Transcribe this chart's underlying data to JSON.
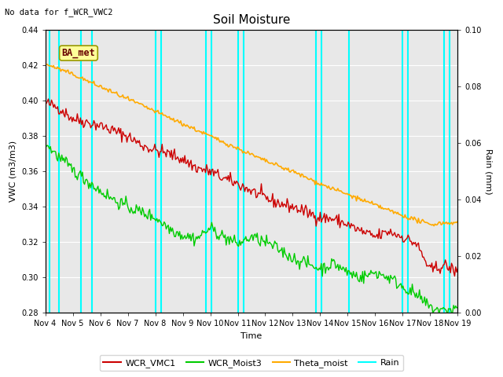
{
  "title": "Soil Moisture",
  "no_data_text": "No data for f_WCR_VWC2",
  "ba_met_label": "BA_met",
  "ylabel_left": "VWC (m3/m3)",
  "ylabel_right": "Rain (mm)",
  "xlabel": "Time",
  "ylim_left": [
    0.28,
    0.44
  ],
  "ylim_right": [
    0.0,
    0.1
  ],
  "yticks_left": [
    0.28,
    0.3,
    0.32,
    0.34,
    0.36,
    0.38,
    0.4,
    0.42,
    0.44
  ],
  "yticks_right": [
    0.0,
    0.02,
    0.04,
    0.06,
    0.08,
    0.1
  ],
  "xtick_labels": [
    "Nov 4",
    "Nov 5",
    "Nov 6",
    "Nov 7",
    "Nov 8",
    "Nov 9",
    "Nov 10",
    "Nov 11",
    "Nov 12",
    "Nov 13",
    "Nov 14",
    "Nov 15",
    "Nov 16",
    "Nov 17",
    "Nov 18",
    "Nov 19"
  ],
  "xtick_positions": [
    0,
    1,
    2,
    3,
    4,
    5,
    6,
    7,
    8,
    9,
    10,
    11,
    12,
    13,
    14,
    15
  ],
  "xlim": [
    0,
    15
  ],
  "rain_lines_x": [
    0.15,
    0.5,
    1.3,
    1.7,
    4.0,
    4.2,
    5.85,
    6.05,
    7.0,
    7.2,
    9.85,
    10.05,
    11.05,
    13.0,
    13.2,
    14.5,
    14.7
  ],
  "red_line_color": "#cc0000",
  "green_line_color": "#00cc00",
  "orange_line_color": "#ffaa00",
  "cyan_line_color": "#00ffff",
  "background_color": "#e8e8e8",
  "legend_entries": [
    "WCR_VMC1",
    "WCR_Moist3",
    "Theta_moist",
    "Rain"
  ],
  "red_x": [
    0.0,
    0.5,
    1.0,
    1.5,
    2.0,
    2.5,
    3.0,
    3.5,
    4.0,
    4.5,
    5.0,
    5.5,
    6.0,
    6.5,
    7.0,
    7.5,
    8.0,
    8.5,
    9.0,
    9.5,
    10.0,
    10.5,
    11.0,
    11.5,
    12.0,
    12.5,
    13.0,
    13.5,
    14.0,
    14.5,
    15.0
  ],
  "red_y": [
    0.399,
    0.396,
    0.39,
    0.388,
    0.386,
    0.383,
    0.38,
    0.375,
    0.372,
    0.37,
    0.367,
    0.362,
    0.36,
    0.356,
    0.353,
    0.349,
    0.345,
    0.342,
    0.34,
    0.337,
    0.334,
    0.333,
    0.33,
    0.326,
    0.323,
    0.326,
    0.323,
    0.319,
    0.304,
    0.307,
    0.303
  ],
  "green_x": [
    0.0,
    0.5,
    1.0,
    1.5,
    2.0,
    2.5,
    3.0,
    3.5,
    4.0,
    4.5,
    5.0,
    5.5,
    6.0,
    6.5,
    7.0,
    7.5,
    8.0,
    8.5,
    9.0,
    9.5,
    10.0,
    10.5,
    11.0,
    11.5,
    12.0,
    12.5,
    13.0,
    13.5,
    14.0,
    14.5,
    15.0
  ],
  "green_y": [
    0.376,
    0.368,
    0.361,
    0.355,
    0.349,
    0.344,
    0.34,
    0.337,
    0.334,
    0.328,
    0.324,
    0.322,
    0.328,
    0.323,
    0.319,
    0.323,
    0.32,
    0.316,
    0.311,
    0.308,
    0.305,
    0.308,
    0.303,
    0.3,
    0.303,
    0.3,
    0.295,
    0.29,
    0.283,
    0.281,
    0.283
  ],
  "orange_x": [
    0.0,
    1.0,
    2.0,
    3.0,
    4.0,
    5.0,
    6.0,
    7.0,
    8.0,
    9.0,
    10.0,
    11.0,
    12.0,
    13.0,
    14.0,
    14.5,
    15.0
  ],
  "orange_y": [
    0.421,
    0.415,
    0.408,
    0.401,
    0.394,
    0.387,
    0.38,
    0.373,
    0.366,
    0.36,
    0.353,
    0.347,
    0.341,
    0.335,
    0.33,
    0.331,
    0.331
  ]
}
